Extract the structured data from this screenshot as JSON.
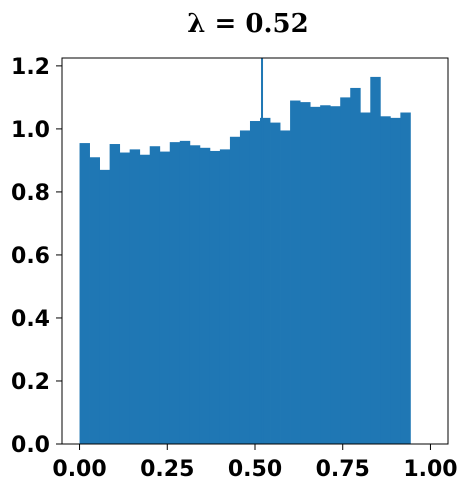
{
  "chart_data": {
    "type": "bar",
    "subtype": "histogram",
    "title": "λ = 0.52",
    "xlabel": "",
    "ylabel": "",
    "xlim": [
      -0.05,
      1.05
    ],
    "ylim": [
      0,
      1.225
    ],
    "grid": false,
    "bar_color": "#1f77b4",
    "vline": {
      "x": 0.52,
      "color": "#1f77b4"
    },
    "bin_edges_start": 0.0,
    "bin_width": 0.02857,
    "values": [
      0.955,
      0.91,
      0.87,
      0.952,
      0.925,
      0.935,
      0.918,
      0.945,
      0.928,
      0.958,
      0.962,
      0.948,
      0.94,
      0.93,
      0.935,
      0.975,
      0.995,
      1.025,
      1.035,
      1.02,
      0.995,
      1.09,
      1.085,
      1.07,
      1.075,
      1.072,
      1.1,
      1.13,
      1.052,
      1.165,
      1.04,
      1.035,
      1.052
    ],
    "x_ticks": [
      0.0,
      0.25,
      0.5,
      0.75,
      1.0
    ],
    "x_tick_labels": [
      "0.00",
      "0.25",
      "0.50",
      "0.75",
      "1.00"
    ],
    "y_ticks": [
      0.0,
      0.2,
      0.4,
      0.6,
      0.8,
      1.0,
      1.2
    ],
    "y_tick_labels": [
      "0.0",
      "0.2",
      "0.4",
      "0.6",
      "0.8",
      "1.0",
      "1.2"
    ]
  }
}
